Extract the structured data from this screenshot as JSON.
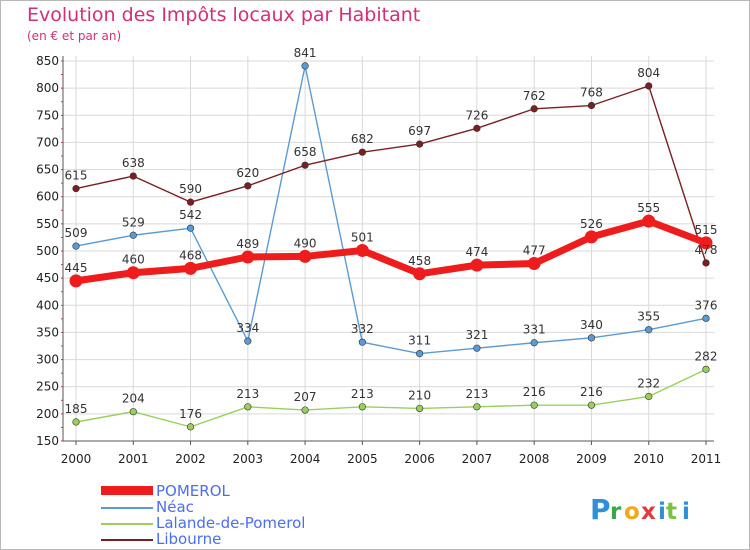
{
  "title": "Evolution des Impôts locaux par Habitant",
  "subtitle": "(en € et par an)",
  "logo_text": "Proxiti",
  "chart_data": {
    "type": "line",
    "x": [
      "2000",
      "2001",
      "2002",
      "2003",
      "2004",
      "2005",
      "2006",
      "2007",
      "2008",
      "2009",
      "2010",
      "2011"
    ],
    "ylim": [
      150,
      850
    ],
    "yticks": [
      150,
      200,
      250,
      300,
      350,
      400,
      450,
      500,
      550,
      600,
      650,
      700,
      750,
      800,
      850
    ],
    "grid": true,
    "legend_position": "bottom-left",
    "series": [
      {
        "name": "POMEROL",
        "color": "#ee1c1c",
        "values": [
          445,
          460,
          468,
          489,
          490,
          501,
          458,
          474,
          477,
          526,
          555,
          515
        ]
      },
      {
        "name": "Néac",
        "color": "#5b9bd5",
        "values": [
          509,
          529,
          542,
          334,
          841,
          332,
          311,
          321,
          331,
          340,
          355,
          376
        ]
      },
      {
        "name": "Lalande-de-Pomerol",
        "color": "#99d05c",
        "values": [
          185,
          204,
          176,
          213,
          207,
          213,
          210,
          213,
          216,
          216,
          232,
          282
        ]
      },
      {
        "name": "Libourne",
        "color": "#7a1f22",
        "values": [
          615,
          638,
          590,
          620,
          658,
          682,
          697,
          726,
          762,
          768,
          804,
          478
        ]
      }
    ]
  }
}
